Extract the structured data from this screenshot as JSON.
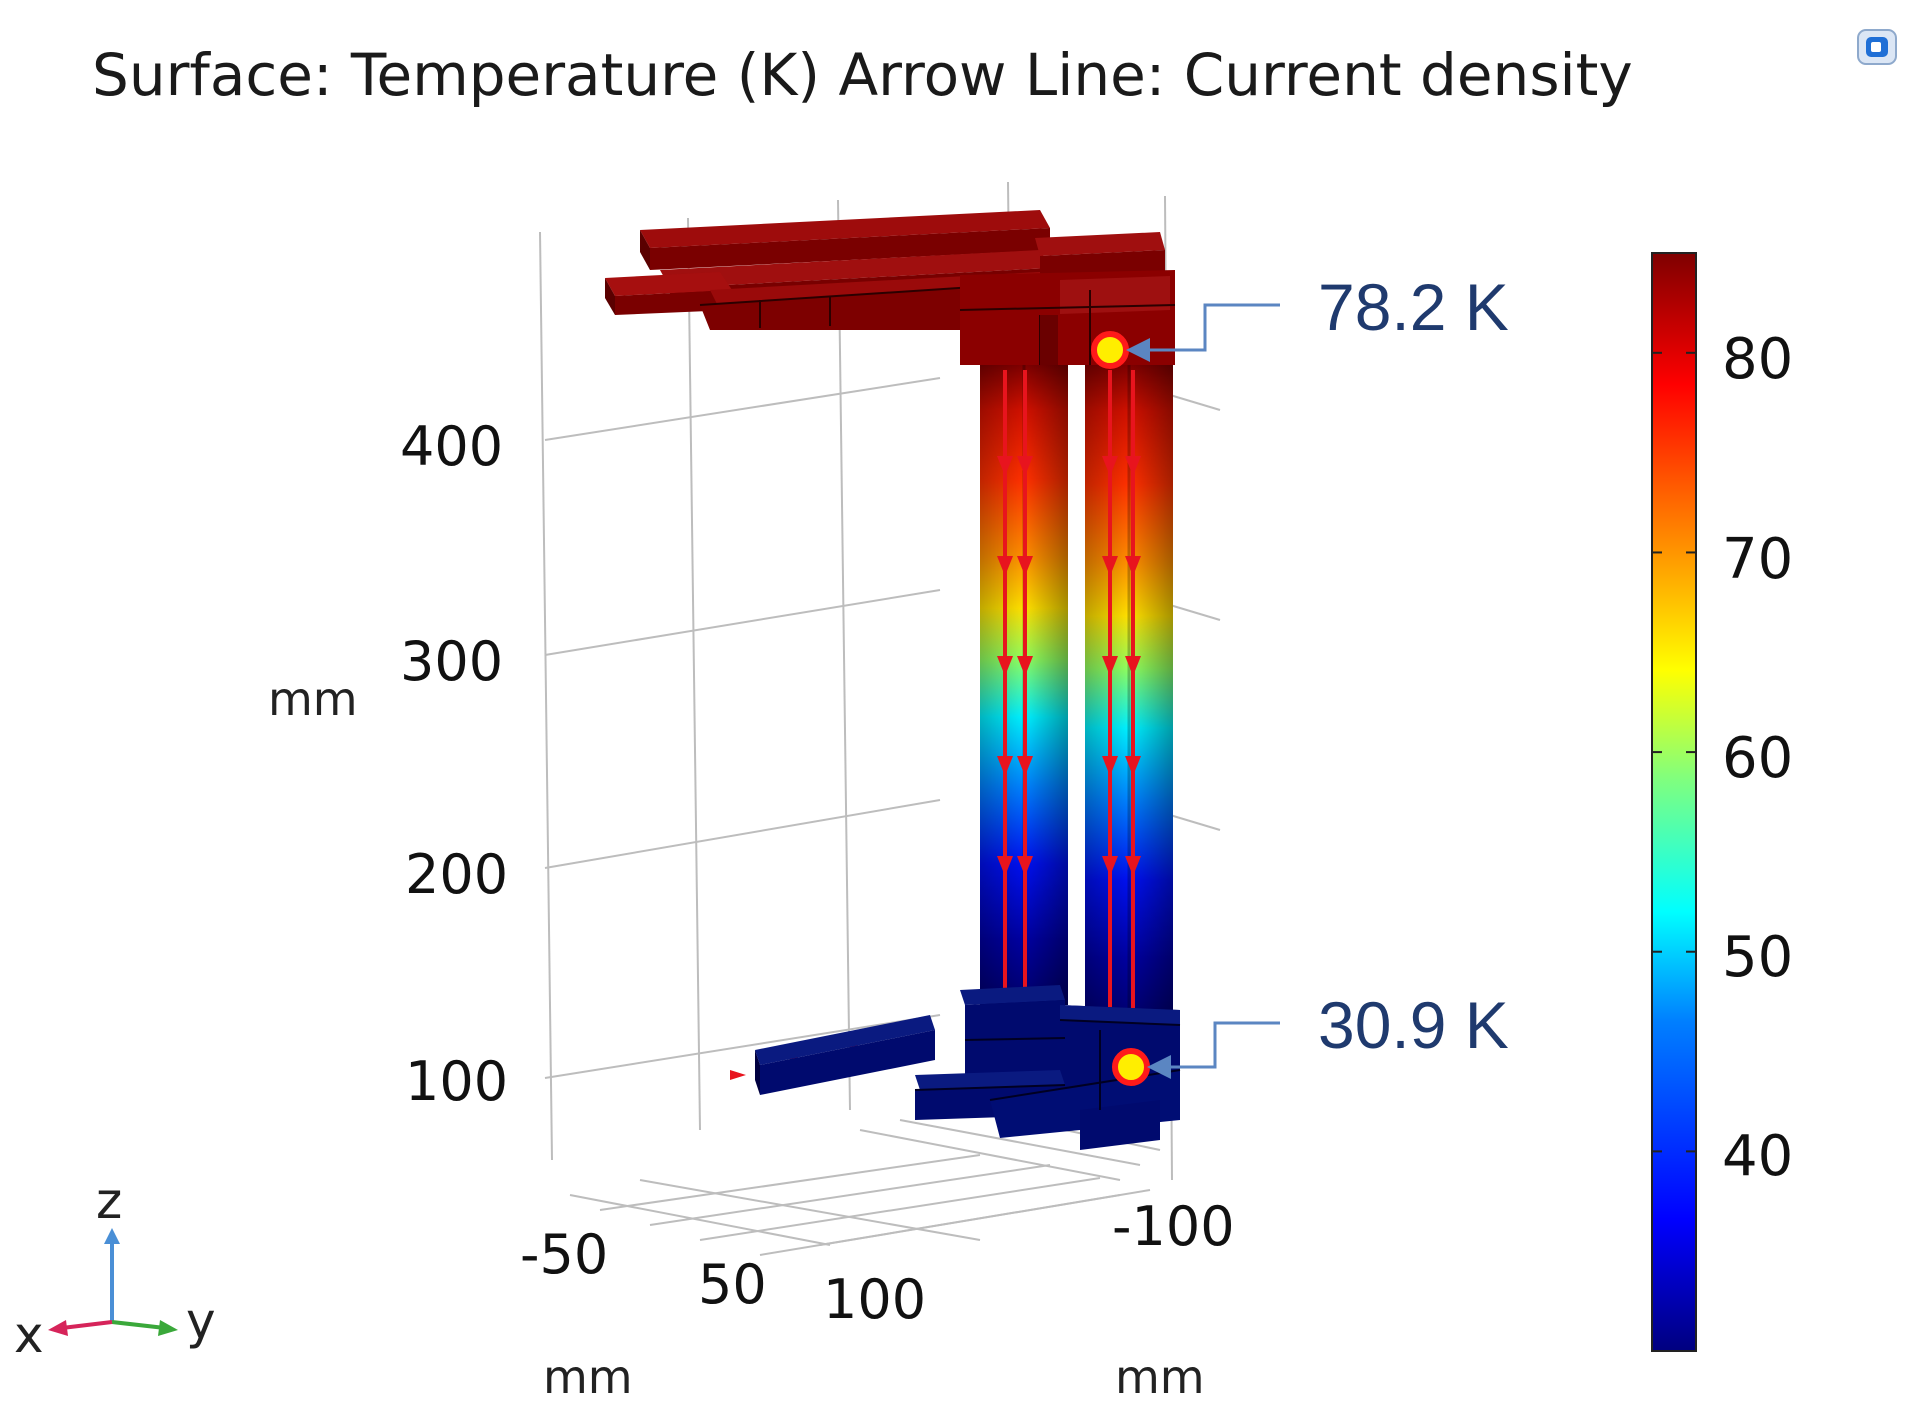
{
  "title": "Surface: Temperature (K)  Arrow Line: Current density",
  "view_icon": "comsol-view-icon",
  "z_axis": {
    "ticks": [
      "400",
      "300",
      "200",
      "100"
    ],
    "unit": "mm"
  },
  "x_axis": {
    "ticks": [
      "-50",
      "50",
      "100"
    ],
    "unit": "mm"
  },
  "y_axis": {
    "ticks": [
      "-100"
    ],
    "unit": "mm"
  },
  "annotations": [
    {
      "label": "78.2 K",
      "value": 78.2,
      "location": "top-of-right-bar"
    },
    {
      "label": "30.9 K",
      "value": 30.9,
      "location": "bottom-of-right-bar"
    }
  ],
  "colorbar": {
    "colormap": "rainbow",
    "min": 30,
    "max": 85,
    "ticks": [
      "80",
      "70",
      "60",
      "50",
      "40"
    ],
    "colors": [
      "#00007f",
      "#0000ff",
      "#007fff",
      "#00ffff",
      "#7fff7f",
      "#ffff00",
      "#ff7f00",
      "#ff0000",
      "#7f0000"
    ]
  },
  "triad": {
    "z": "z",
    "x": "x",
    "y": "y"
  },
  "colors": {
    "hot": "#8b0000",
    "cold": "#000a6e",
    "arrow": "#e8141e",
    "callout": "#1f3a6e",
    "marker_fill": "#ffee00",
    "marker_ring": "#ff1a1a"
  }
}
